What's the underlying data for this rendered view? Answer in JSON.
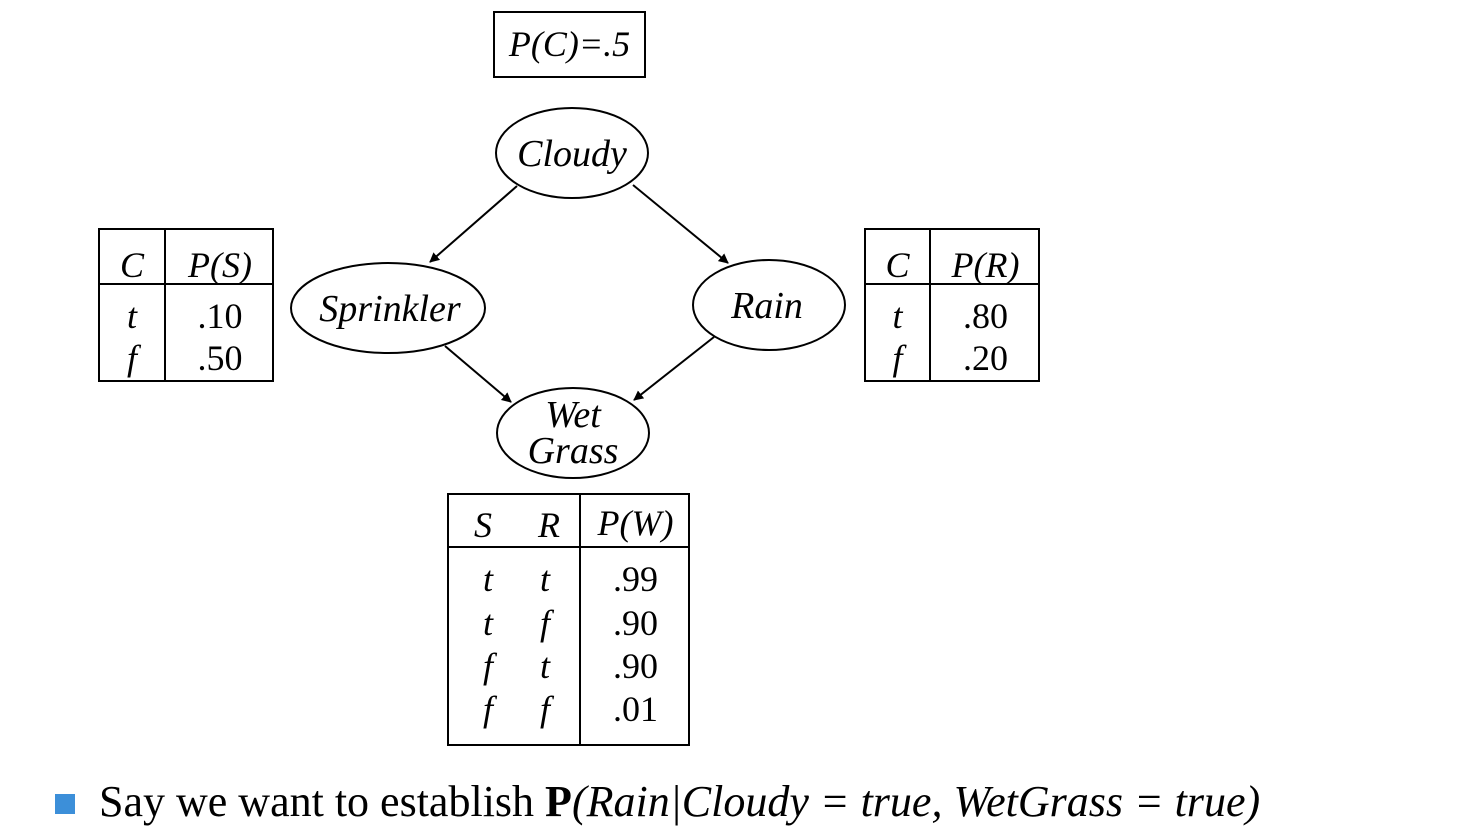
{
  "prior": {
    "text": "P(C)=.5"
  },
  "nodes": {
    "cloudy": "Cloudy",
    "sprinkler": "Sprinkler",
    "rain": "Rain",
    "wetgrass_line1": "Wet",
    "wetgrass_line2": "Grass"
  },
  "cpt_sprinkler": {
    "headers": [
      "C",
      "P(S)"
    ],
    "rows": [
      [
        "t",
        ".10"
      ],
      [
        "f",
        ".50"
      ]
    ]
  },
  "cpt_rain": {
    "headers": [
      "C",
      "P(R)"
    ],
    "rows": [
      [
        "t",
        ".80"
      ],
      [
        "f",
        ".20"
      ]
    ]
  },
  "cpt_wetgrass": {
    "headers": [
      "S",
      "R",
      "P(W)"
    ],
    "rows": [
      [
        "t",
        "t",
        ".99"
      ],
      [
        "t",
        "f",
        ".90"
      ],
      [
        "f",
        "t",
        ".90"
      ],
      [
        "f",
        "f",
        ".01"
      ]
    ]
  },
  "bullet": {
    "prefix": "Say we want to establish ",
    "bold": "P",
    "expression": "(Rain|Cloudy = true, WetGrass = true)"
  },
  "colors": {
    "bullet": "#3c8fd9"
  }
}
